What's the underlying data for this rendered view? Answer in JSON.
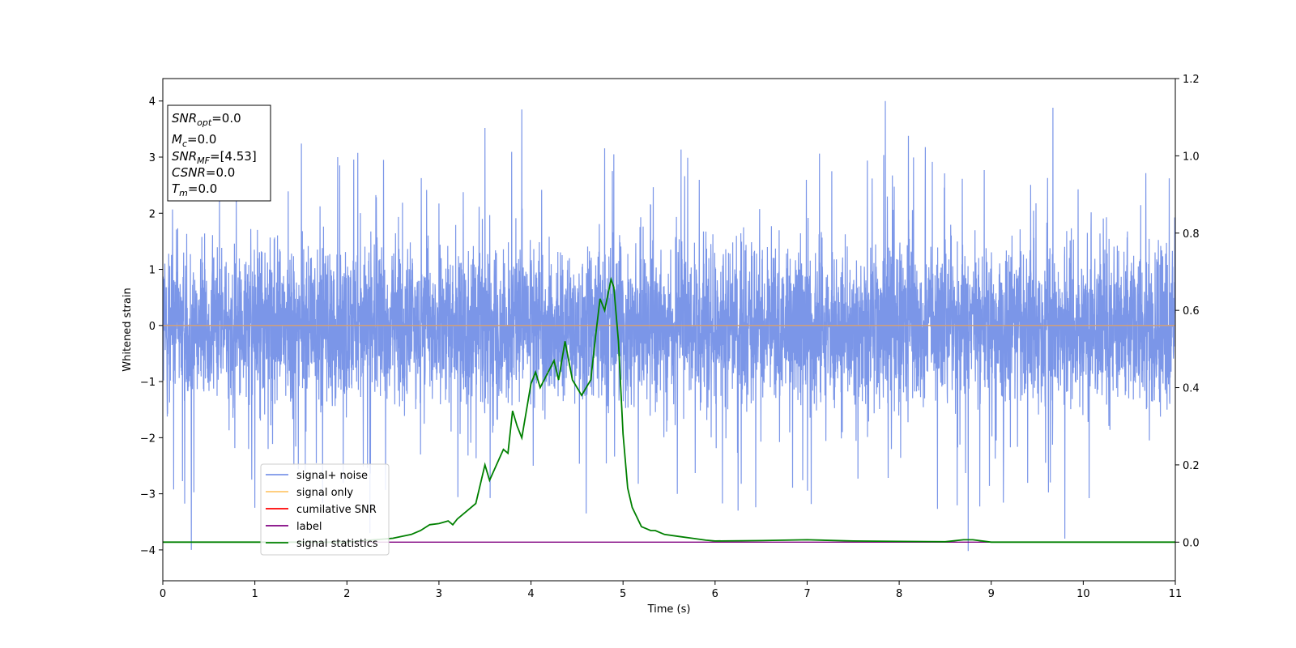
{
  "chart_data": {
    "type": "line",
    "xlabel": "Time (s)",
    "ylabel": "Whitened strain",
    "xlim": [
      0,
      11
    ],
    "ylim": [
      -4.55,
      4.4
    ],
    "y2lim": [
      -0.1,
      1.2
    ],
    "x_ticks": [
      "0",
      "1",
      "2",
      "3",
      "4",
      "5",
      "6",
      "7",
      "8",
      "9",
      "10",
      "11"
    ],
    "y_ticks": [
      "4",
      "3",
      "2",
      "1",
      "0",
      "−1",
      "−2",
      "−3",
      "−4"
    ],
    "y2_ticks": [
      "1.2",
      "1.0",
      "0.8",
      "0.6",
      "0.4",
      "0.2",
      "0.0"
    ],
    "grid": false,
    "legend_position": "lower-left",
    "colors": {
      "noise": "#7b96e8",
      "signal": "#ffc86e",
      "cumulative": "#ff0000",
      "label": "#800080",
      "statistics": "#008000",
      "zero_line": "#d8a070"
    },
    "series": [
      {
        "name": "signal+ noise",
        "note_values": "dense whitened noise, envelope approx ±1.5 with spikes to ±4",
        "envelope": 1.5,
        "spikes": [
          {
            "x": 0.31,
            "y": -4.0
          },
          {
            "x": 3.5,
            "y": 3.52
          },
          {
            "x": 3.9,
            "y": 3.85
          },
          {
            "x": 7.85,
            "y": 4.0
          },
          {
            "x": 9.67,
            "y": 3.88
          },
          {
            "x": 8.75,
            "y": -4.02
          },
          {
            "x": 9.8,
            "y": -3.8
          },
          {
            "x": 4.6,
            "y": -3.35
          },
          {
            "x": 6.25,
            "y": -3.3
          },
          {
            "x": 1.0,
            "y": -3.25
          },
          {
            "x": 2.25,
            "y": -3.7
          },
          {
            "x": 8.1,
            "y": 3.38
          },
          {
            "x": 4.9,
            "y": 3.05
          },
          {
            "x": 1.9,
            "y": 3.0
          }
        ]
      },
      {
        "name": "signal only",
        "x": [
          0,
          11
        ],
        "y": [
          0,
          0
        ]
      },
      {
        "name": "cumilative SNR",
        "x": [
          0,
          11
        ],
        "y": [
          0,
          0
        ]
      },
      {
        "name": "label",
        "x": [
          0,
          11
        ],
        "y": [
          0,
          0
        ]
      },
      {
        "name": "signal statistics",
        "x": [
          0,
          2.0,
          2.5,
          2.7,
          2.8,
          2.9,
          3.0,
          3.1,
          3.15,
          3.2,
          3.3,
          3.4,
          3.5,
          3.55,
          3.7,
          3.75,
          3.8,
          3.85,
          3.9,
          4.0,
          4.05,
          4.1,
          4.25,
          4.3,
          4.37,
          4.45,
          4.5,
          4.55,
          4.65,
          4.7,
          4.75,
          4.8,
          4.87,
          4.9,
          4.95,
          5.0,
          5.05,
          5.1,
          5.2,
          5.25,
          5.3,
          5.35,
          5.45,
          5.6,
          5.75,
          5.9,
          6.0,
          6.5,
          7.0,
          7.5,
          8.0,
          8.5,
          8.7,
          8.8,
          9.0,
          11.0
        ],
        "y": [
          0.0,
          0.0,
          0.01,
          0.02,
          0.03,
          0.045,
          0.048,
          0.055,
          0.045,
          0.06,
          0.08,
          0.1,
          0.2,
          0.16,
          0.24,
          0.23,
          0.34,
          0.3,
          0.27,
          0.41,
          0.44,
          0.4,
          0.47,
          0.42,
          0.52,
          0.42,
          0.4,
          0.38,
          0.42,
          0.53,
          0.63,
          0.6,
          0.68,
          0.66,
          0.52,
          0.28,
          0.14,
          0.09,
          0.04,
          0.035,
          0.03,
          0.03,
          0.02,
          0.015,
          0.01,
          0.005,
          0.003,
          0.004,
          0.006,
          0.003,
          0.002,
          0.001,
          0.006,
          0.006,
          0.0,
          0.0
        ]
      }
    ]
  },
  "info_box": {
    "line1_sym": "SNR",
    "line1_sub": "opt",
    "line1_val": "=0.0",
    "line2_sym": "M",
    "line2_sub": "c",
    "line2_val": "=0.0",
    "line3_sym": "SNR",
    "line3_sub": "MF",
    "line3_val": "=[4.53]",
    "line4_sym": "CSNR",
    "line4_val": "=0.0",
    "line5_sym": "T",
    "line5_sub": "m",
    "line5_val": "=0.0"
  }
}
